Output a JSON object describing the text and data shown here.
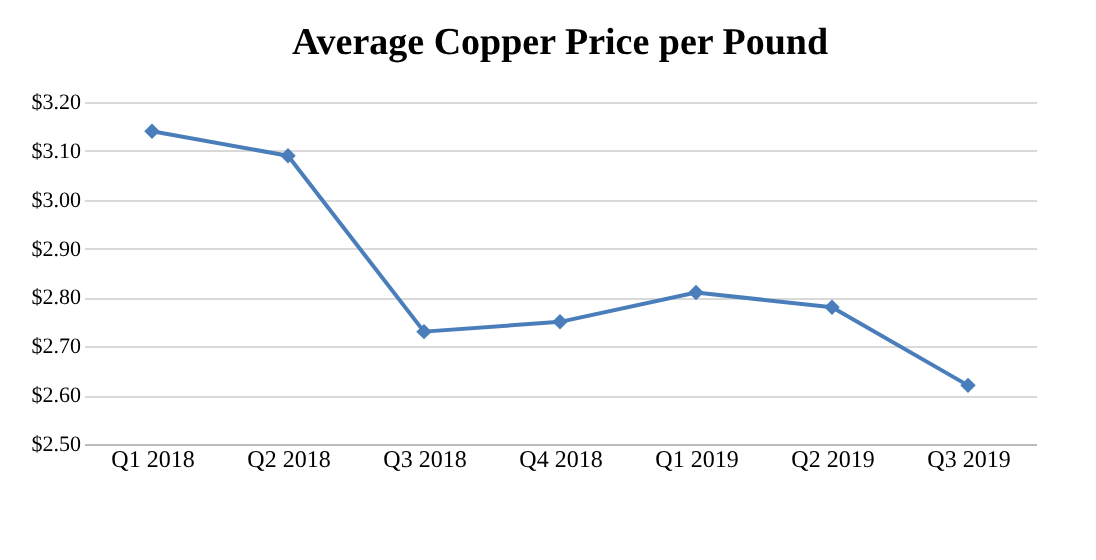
{
  "chart_data": {
    "type": "line",
    "title": "Average Copper Price per Pound",
    "categories": [
      "Q1 2018",
      "Q2 2018",
      "Q3 2018",
      "Q4 2018",
      "Q1 2019",
      "Q2 2019",
      "Q3 2019"
    ],
    "series": [
      {
        "color": "#4a7ebb",
        "values": [
          3.14,
          3.09,
          2.73,
          2.75,
          2.81,
          2.78,
          2.62
        ]
      }
    ],
    "ylim": [
      2.5,
      3.2
    ],
    "yticks": [
      {
        "value": 2.5,
        "label": "$2.50"
      },
      {
        "value": 2.6,
        "label": "$2.60"
      },
      {
        "value": 2.7,
        "label": "$2.70"
      },
      {
        "value": 2.8,
        "label": "$2.80"
      },
      {
        "value": 2.9,
        "label": "$2.90"
      },
      {
        "value": 3.0,
        "label": "$3.00"
      },
      {
        "value": 3.1,
        "label": "$3.10"
      },
      {
        "value": 3.2,
        "label": "$3.20"
      }
    ],
    "grid": "y",
    "marker": "diamond",
    "line_style": "solid"
  }
}
